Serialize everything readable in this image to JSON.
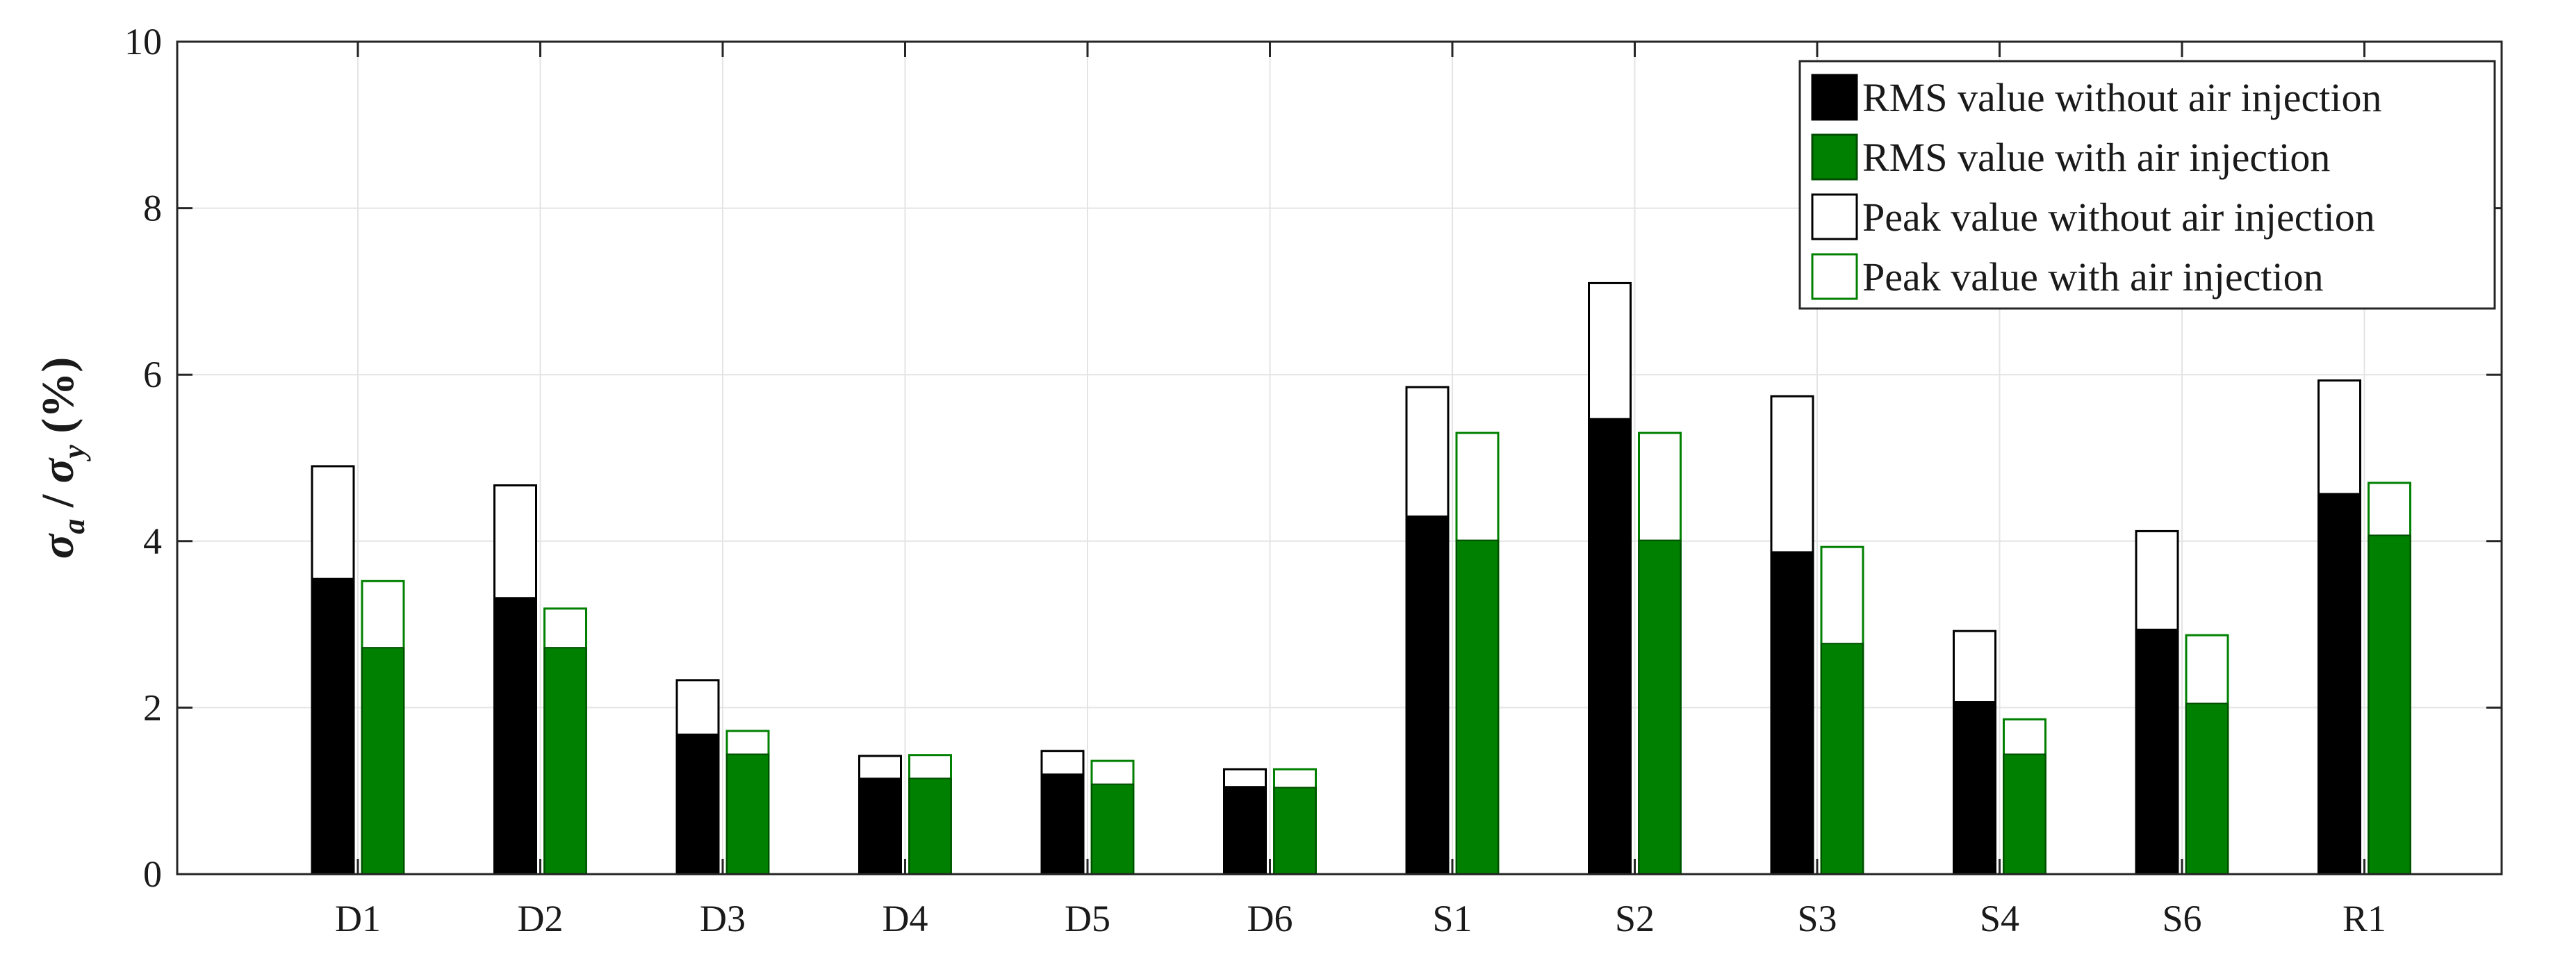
{
  "chart_data": {
    "type": "bar",
    "ylabel": {
      "sym1": "σ",
      "sub1": "a",
      "slash": " / ",
      "sym2": "σ",
      "sub2": "y",
      "unit": " (%)"
    },
    "ylim": [
      0,
      10
    ],
    "yticks": [
      "0",
      "2",
      "4",
      "6",
      "8",
      "10"
    ],
    "grid": true,
    "legend_position": "top-right",
    "categories": [
      "D1",
      "D2",
      "D3",
      "D4",
      "D5",
      "D6",
      "S1",
      "S2",
      "S3",
      "S4",
      "S6",
      "R1"
    ],
    "series": [
      {
        "name": "RMS value without air injection",
        "group": "without",
        "kind": "rms",
        "color": "#000000",
        "values": [
          3.55,
          3.32,
          1.68,
          1.15,
          1.2,
          1.05,
          4.3,
          5.47,
          3.87,
          2.07,
          2.94,
          4.57
        ]
      },
      {
        "name": "RMS value with air injection",
        "group": "with",
        "kind": "rms",
        "color": "#008000",
        "values": [
          2.72,
          2.72,
          1.44,
          1.15,
          1.08,
          1.04,
          4.01,
          4.01,
          2.77,
          1.44,
          2.05,
          4.07
        ]
      },
      {
        "name": "Peak value without air injection",
        "group": "without",
        "kind": "peak",
        "color": "#000000",
        "values": [
          4.9,
          4.67,
          2.33,
          1.42,
          1.48,
          1.26,
          5.85,
          7.1,
          5.74,
          2.92,
          4.12,
          5.93
        ]
      },
      {
        "name": "Peak value with air injection",
        "group": "with",
        "kind": "peak",
        "color": "#008000",
        "values": [
          3.52,
          3.19,
          1.72,
          1.43,
          1.36,
          1.26,
          5.3,
          5.3,
          3.93,
          1.86,
          2.87,
          4.7
        ]
      }
    ]
  }
}
